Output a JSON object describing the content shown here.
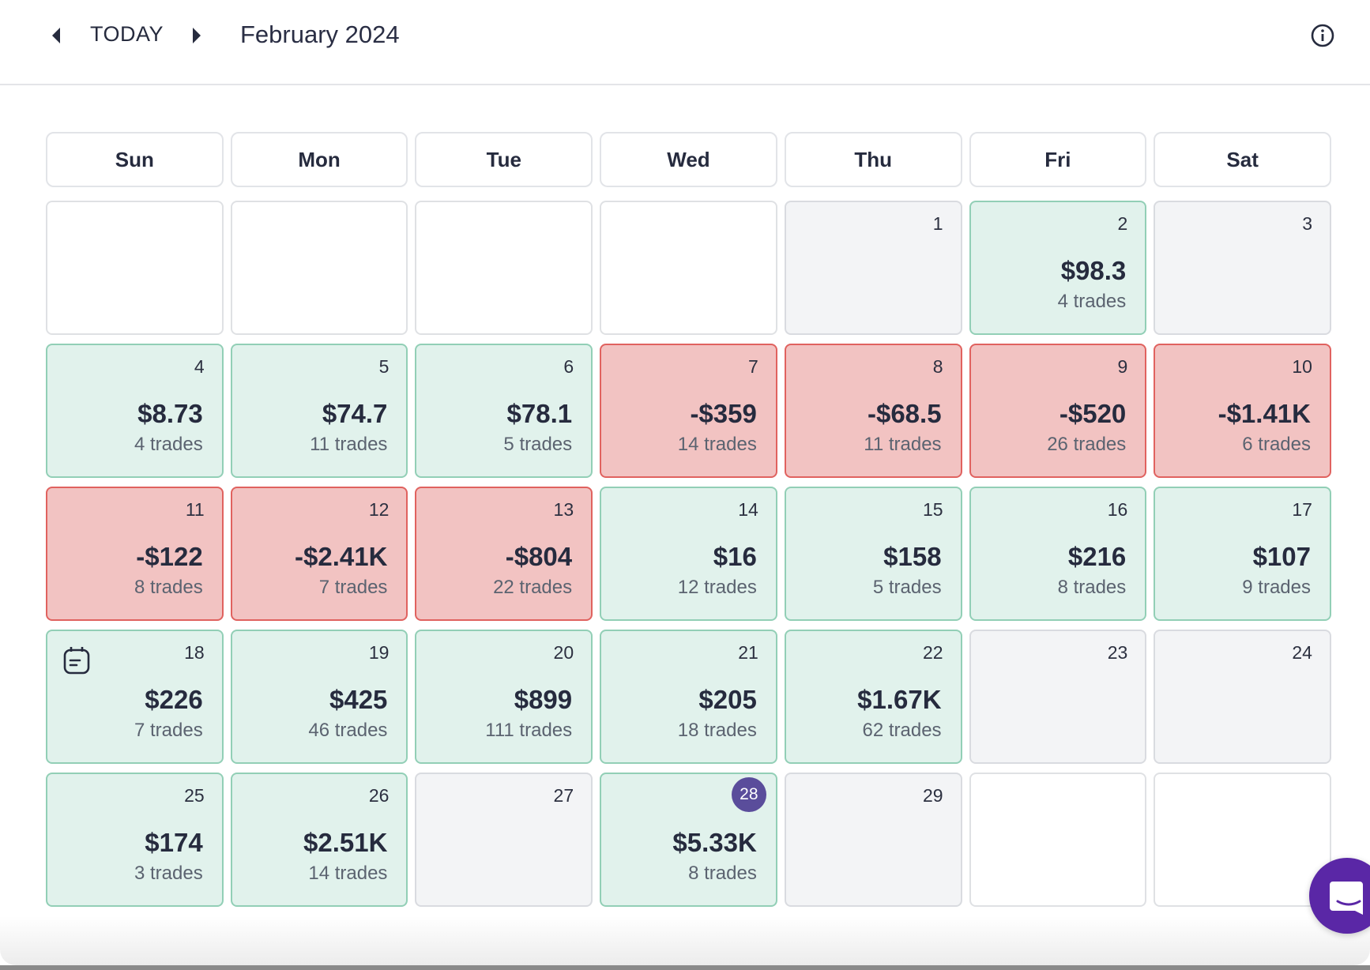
{
  "header": {
    "today_label": "TODAY",
    "title": "February 2024"
  },
  "weekdays": [
    "Sun",
    "Mon",
    "Tue",
    "Wed",
    "Thu",
    "Fri",
    "Sat"
  ],
  "colors": {
    "win_bg": "#e1f2ec",
    "loss_bg": "#f2c3c2",
    "today_badge": "#5a4d9b",
    "chat": "#5a27a6"
  },
  "days": [
    {
      "day": "",
      "type": "outside"
    },
    {
      "day": "",
      "type": "outside"
    },
    {
      "day": "",
      "type": "outside"
    },
    {
      "day": "",
      "type": "outside"
    },
    {
      "day": "1",
      "type": "empty"
    },
    {
      "day": "2",
      "type": "win",
      "value": "$98.3",
      "trades": "4 trades"
    },
    {
      "day": "3",
      "type": "empty"
    },
    {
      "day": "4",
      "type": "win",
      "value": "$8.73",
      "trades": "4 trades"
    },
    {
      "day": "5",
      "type": "win",
      "value": "$74.7",
      "trades": "11 trades"
    },
    {
      "day": "6",
      "type": "win",
      "value": "$78.1",
      "trades": "5 trades"
    },
    {
      "day": "7",
      "type": "loss",
      "value": "-$359",
      "trades": "14 trades"
    },
    {
      "day": "8",
      "type": "loss",
      "value": "-$68.5",
      "trades": "11 trades"
    },
    {
      "day": "9",
      "type": "loss",
      "value": "-$520",
      "trades": "26 trades"
    },
    {
      "day": "10",
      "type": "loss",
      "value": "-$1.41K",
      "trades": "6 trades"
    },
    {
      "day": "11",
      "type": "loss",
      "value": "-$122",
      "trades": "8 trades"
    },
    {
      "day": "12",
      "type": "loss",
      "value": "-$2.41K",
      "trades": "7 trades"
    },
    {
      "day": "13",
      "type": "loss",
      "value": "-$804",
      "trades": "22 trades"
    },
    {
      "day": "14",
      "type": "win",
      "value": "$16",
      "trades": "12 trades"
    },
    {
      "day": "15",
      "type": "win",
      "value": "$158",
      "trades": "5 trades"
    },
    {
      "day": "16",
      "type": "win",
      "value": "$216",
      "trades": "8 trades"
    },
    {
      "day": "17",
      "type": "win",
      "value": "$107",
      "trades": "9 trades"
    },
    {
      "day": "18",
      "type": "win",
      "value": "$226",
      "trades": "7 trades",
      "note": true
    },
    {
      "day": "19",
      "type": "win",
      "value": "$425",
      "trades": "46 trades"
    },
    {
      "day": "20",
      "type": "win",
      "value": "$899",
      "trades": "111 trades"
    },
    {
      "day": "21",
      "type": "win",
      "value": "$205",
      "trades": "18 trades"
    },
    {
      "day": "22",
      "type": "win",
      "value": "$1.67K",
      "trades": "62 trades"
    },
    {
      "day": "23",
      "type": "empty"
    },
    {
      "day": "24",
      "type": "empty"
    },
    {
      "day": "25",
      "type": "win",
      "value": "$174",
      "trades": "3 trades"
    },
    {
      "day": "26",
      "type": "win",
      "value": "$2.51K",
      "trades": "14 trades"
    },
    {
      "day": "27",
      "type": "empty"
    },
    {
      "day": "28",
      "type": "win",
      "value": "$5.33K",
      "trades": "8 trades",
      "today": true
    },
    {
      "day": "29",
      "type": "empty"
    },
    {
      "day": "",
      "type": "outside"
    },
    {
      "day": "",
      "type": "outside"
    }
  ]
}
